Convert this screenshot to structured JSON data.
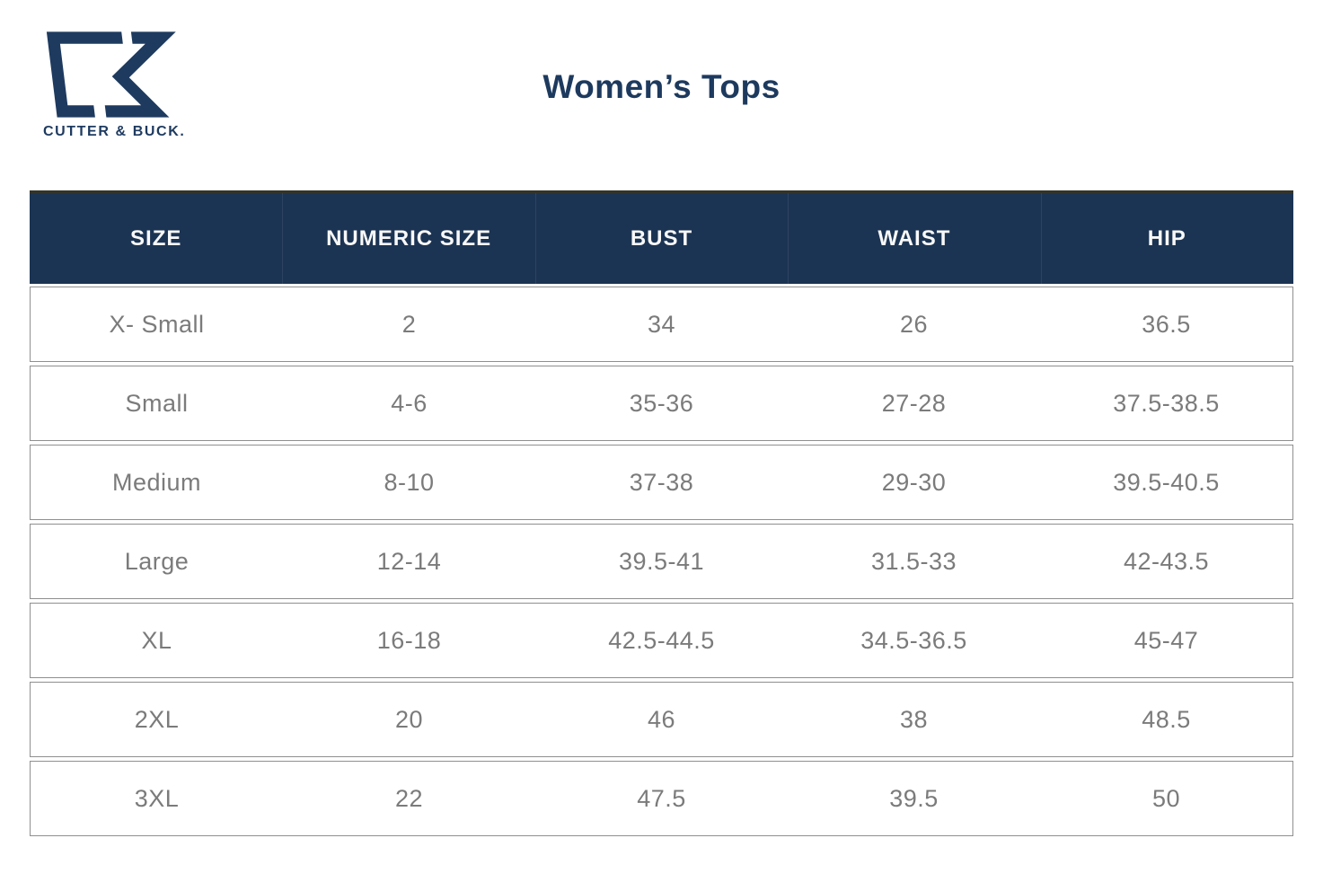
{
  "brand": {
    "name": "CUTTER & BUCK.",
    "logo_icon": "cutter-buck-cb-monogram",
    "logo_color": "#1e3a5f"
  },
  "page": {
    "title": "Women’s Tops"
  },
  "colors": {
    "header_background": "#1c3453",
    "header_text": "#ffffff",
    "body_text": "#7b7b7b",
    "row_border": "#8f8f8f",
    "accent_navy": "#1d3a5e"
  },
  "table": {
    "headers": [
      "SIZE",
      "NUMERIC SIZE",
      "BUST",
      "WAIST",
      "HIP"
    ],
    "rows": [
      [
        "X- Small",
        "2",
        "34",
        "26",
        "36.5"
      ],
      [
        "Small",
        "4-6",
        "35-36",
        "27-28",
        "37.5-38.5"
      ],
      [
        "Medium",
        "8-10",
        "37-38",
        "29-30",
        "39.5-40.5"
      ],
      [
        "Large",
        "12-14",
        "39.5-41",
        "31.5-33",
        "42-43.5"
      ],
      [
        "XL",
        "16-18",
        "42.5-44.5",
        "34.5-36.5",
        "45-47"
      ],
      [
        "2XL",
        "20",
        "46",
        "38",
        "48.5"
      ],
      [
        "3XL",
        "22",
        "47.5",
        "39.5",
        "50"
      ]
    ]
  }
}
